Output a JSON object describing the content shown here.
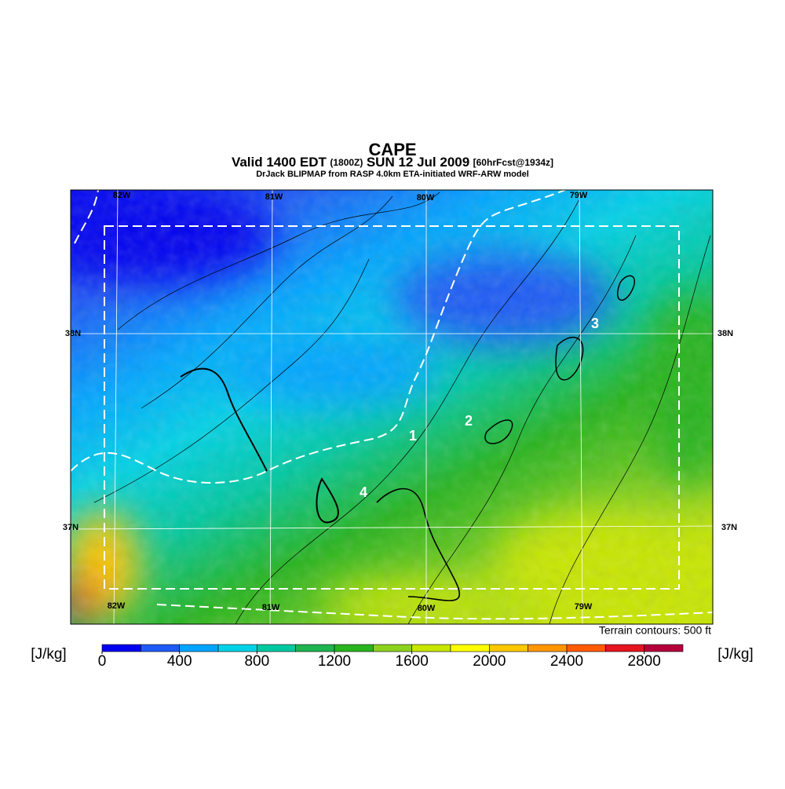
{
  "header": {
    "title": "CAPE",
    "valid": "Valid 1400 EDT",
    "utc": "(1800Z)",
    "date": "SUN 12 Jul 2009",
    "forecast": "[60hrFcst@1934z]",
    "source": "DrJack BLIPMAP from RASP 4.0km ETA-initiated WRF-ARW model"
  },
  "map": {
    "lon_labels_top": [
      "82W",
      "81W",
      "80W",
      "79W"
    ],
    "lon_labels_bottom": [
      "82W",
      "81W",
      "80W",
      "79W"
    ],
    "lat_labels_left": [
      "38N",
      "37N"
    ],
    "lat_labels_right": [
      "38N",
      "37N"
    ],
    "sites": [
      "1",
      "2",
      "3",
      "4"
    ],
    "contour_note": "Terrain contours: 500 ft"
  },
  "colorbar": {
    "unit": "[J/kg]",
    "range": [
      0,
      3000
    ],
    "ticks": [
      0,
      400,
      800,
      1200,
      1600,
      2000,
      2400,
      2800
    ],
    "colors": [
      "#0000f0",
      "#1e5af5",
      "#00a5ff",
      "#00d2e6",
      "#00c8a0",
      "#1eb450",
      "#28b41e",
      "#8cd21e",
      "#c8e600",
      "#ffff00",
      "#ffc800",
      "#ff9600",
      "#ff5a00",
      "#e6141e",
      "#b4003c"
    ]
  }
}
